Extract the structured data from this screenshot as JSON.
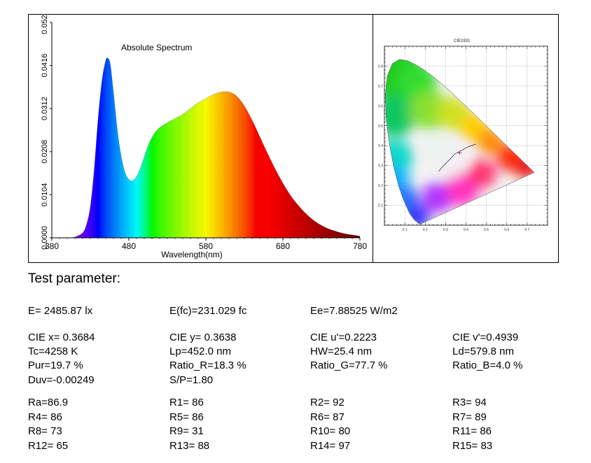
{
  "chart_data": [
    {
      "type": "area",
      "title": "Absolute Spectrum",
      "xlabel": "Wavelength(nm)",
      "ylabel": "",
      "xlim": [
        380,
        780
      ],
      "ylim": [
        0,
        0.052
      ],
      "x_ticks": [
        380,
        480,
        580,
        680,
        780
      ],
      "y_ticks": [
        "0.0000",
        "0.0104",
        "0.0208",
        "0.0312",
        "0.0416",
        "0.0520"
      ],
      "x": [
        380,
        400,
        410,
        420,
        425,
        430,
        435,
        440,
        445,
        450,
        453,
        456,
        460,
        465,
        470,
        475,
        480,
        485,
        490,
        495,
        500,
        505,
        510,
        515,
        520,
        530,
        540,
        550,
        560,
        570,
        580,
        590,
        600,
        610,
        620,
        630,
        640,
        650,
        660,
        670,
        680,
        690,
        700,
        710,
        720,
        730,
        740,
        750,
        760,
        770,
        780
      ],
      "values": [
        0,
        0,
        0.0002,
        0.0012,
        0.0032,
        0.0075,
        0.0165,
        0.0285,
        0.0378,
        0.0428,
        0.0433,
        0.0418,
        0.0352,
        0.0262,
        0.0198,
        0.0158,
        0.0141,
        0.0138,
        0.0148,
        0.0168,
        0.0196,
        0.0222,
        0.0242,
        0.0256,
        0.0266,
        0.0278,
        0.0288,
        0.0298,
        0.0312,
        0.0326,
        0.0336,
        0.0346,
        0.0352,
        0.0352,
        0.0342,
        0.0318,
        0.0284,
        0.0244,
        0.0204,
        0.0166,
        0.0132,
        0.0102,
        0.0078,
        0.0058,
        0.0042,
        0.003,
        0.0021,
        0.0015,
        0.001,
        0.0007,
        0.0004
      ]
    },
    {
      "type": "scatter",
      "title": "CIE1931",
      "xlabel": "",
      "ylabel": "",
      "xlim": [
        0,
        0.8
      ],
      "ylim": [
        0,
        0.9
      ],
      "point": {
        "x": 0.3684,
        "y": 0.3638
      },
      "point_label": "",
      "planckian_locus": [
        [
          0.4476,
          0.4074
        ],
        [
          0.4102,
          0.3942
        ],
        [
          0.3805,
          0.3768
        ],
        [
          0.3459,
          0.3586
        ],
        [
          0.3135,
          0.3236
        ],
        [
          0.2952,
          0.3048
        ],
        [
          0.2807,
          0.2883
        ],
        [
          0.2652,
          0.2697
        ]
      ],
      "spectrum_locus": [
        [
          0.1741,
          0.005
        ],
        [
          0.1666,
          0.0089
        ],
        [
          0.144,
          0.0297
        ],
        [
          0.1241,
          0.0578
        ],
        [
          0.0913,
          0.1327
        ],
        [
          0.0687,
          0.2007
        ],
        [
          0.0454,
          0.295
        ],
        [
          0.0235,
          0.4127
        ],
        [
          0.0082,
          0.5384
        ],
        [
          0.0039,
          0.6548
        ],
        [
          0.0139,
          0.7502
        ],
        [
          0.0389,
          0.812
        ],
        [
          0.0743,
          0.8338
        ],
        [
          0.1142,
          0.8262
        ],
        [
          0.1547,
          0.8059
        ],
        [
          0.1929,
          0.7816
        ],
        [
          0.2296,
          0.7543
        ],
        [
          0.2658,
          0.7243
        ],
        [
          0.3016,
          0.6923
        ],
        [
          0.3373,
          0.6589
        ],
        [
          0.3731,
          0.6245
        ],
        [
          0.4087,
          0.5896
        ],
        [
          0.4441,
          0.5547
        ],
        [
          0.4788,
          0.5202
        ],
        [
          0.5125,
          0.4866
        ],
        [
          0.5448,
          0.4544
        ],
        [
          0.5752,
          0.4242
        ],
        [
          0.6029,
          0.3965
        ],
        [
          0.627,
          0.3725
        ],
        [
          0.6482,
          0.3514
        ],
        [
          0.6658,
          0.334
        ],
        [
          0.6801,
          0.3197
        ],
        [
          0.6915,
          0.3083
        ],
        [
          0.7006,
          0.2993
        ],
        [
          0.7079,
          0.292
        ],
        [
          0.714,
          0.2859
        ],
        [
          0.719,
          0.2809
        ],
        [
          0.723,
          0.277
        ],
        [
          0.726,
          0.274
        ],
        [
          0.7347,
          0.2653
        ]
      ]
    }
  ],
  "colors": {
    "border": "#000000",
    "locus_line": "#1e1e5a",
    "point": "#cc2222"
  },
  "test_parameter": {
    "heading": "Test parameter:",
    "rows": [
      [
        "E=  2485.87 lx",
        "E(fc)=231.029 fc",
        "Ee=7.88525 W/m2",
        ""
      ],
      [
        "CIE x= 0.3684",
        "CIE y= 0.3638",
        "CIE u'=0.2223",
        "CIE v'=0.4939"
      ],
      [
        "Tc=4258 K",
        "Lp=452.0 nm",
        "HW=25.4 nm",
        "Ld=579.8 nm"
      ],
      [
        "Pur=19.7 %",
        "Ratio_R=18.3 %",
        "Ratio_G=77.7 %",
        "Ratio_B=4.0 %"
      ],
      [
        "Duv=-0.00249",
        "S/P=1.80",
        "",
        ""
      ],
      [
        "Ra=86.9",
        "R1= 86",
        "R2= 92",
        "R3= 94"
      ],
      [
        "R4= 86",
        "R5= 86",
        "R6= 87",
        "R7= 89"
      ],
      [
        "R8= 73",
        "R9= 31",
        "R10= 80",
        "R11= 86"
      ],
      [
        "R12= 65",
        "R13= 88",
        "R14= 97",
        "R15= 83"
      ]
    ]
  }
}
